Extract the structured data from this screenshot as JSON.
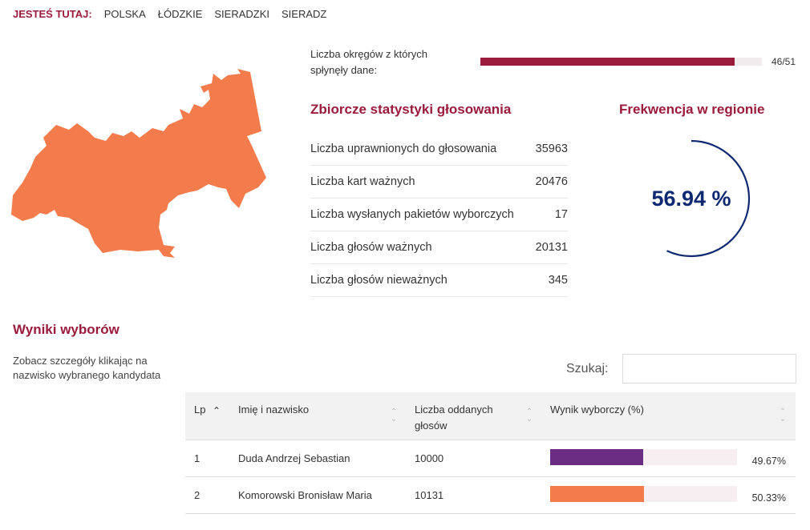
{
  "breadcrumb": {
    "here_label": "JESTEŚ TUTAJ:",
    "items": [
      "POLSKA",
      "ŁÓDZKIE",
      "SIERADZKI",
      "SIERADZ"
    ]
  },
  "progress": {
    "label": "Liczba okręgów z których spłynęły dane:",
    "value": 46,
    "total": 51,
    "text": "46/51"
  },
  "stats": {
    "title": "Zbiorcze statystyki głosowania",
    "rows": [
      {
        "label": "Liczba uprawnionych do głosowania",
        "value": "35963"
      },
      {
        "label": "Liczba kart ważnych",
        "value": "20476"
      },
      {
        "label": "Liczba wysłanych pakietów wyborczych",
        "value": "17"
      },
      {
        "label": "Liczba głosów ważnych",
        "value": "20131"
      },
      {
        "label": "Liczba głosów nieważnych",
        "value": "345"
      }
    ]
  },
  "turnout": {
    "title": "Frekwencja w regionie",
    "value": 56.94,
    "text": "56.94 %"
  },
  "results": {
    "title": "Wyniki wyborów",
    "hint": "Zobacz szczegóły klikając na nazwisko wybranego kandydata",
    "search_label": "Szukaj:",
    "search_value": "",
    "columns": {
      "lp": "Lp",
      "name": "Imię i nazwisko",
      "votes": "Liczba oddanych głosów",
      "result": "Wynik wyborczy (%)"
    },
    "rows": [
      {
        "lp": "1",
        "name": "Duda Andrzej Sebastian",
        "votes": "10000",
        "pct": 49.67,
        "pct_text": "49.67%",
        "color": "#6b2d84"
      },
      {
        "lp": "2",
        "name": "Komorowski Bronisław Maria",
        "votes": "10131",
        "pct": 50.33,
        "pct_text": "50.33%",
        "color": "#f47c4c"
      }
    ]
  },
  "colors": {
    "accent": "#9b1b3c",
    "map_fill": "#f47c4c",
    "gauge": "#0f2a72"
  }
}
